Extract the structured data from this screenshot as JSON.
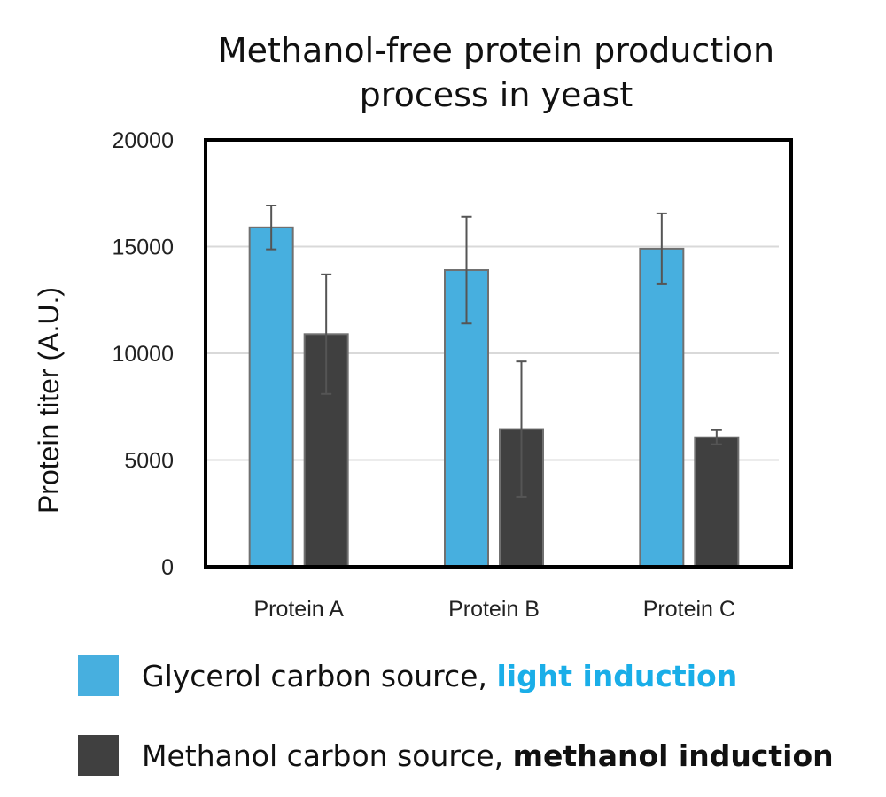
{
  "chart_data": {
    "type": "bar",
    "title_lines": [
      "Methanol-free protein production",
      "process in yeast"
    ],
    "xlabel": "",
    "ylabel": "Protein titer (A.U.)",
    "ylim": [
      0,
      20000
    ],
    "yticks": [
      0,
      5000,
      10000,
      15000,
      20000
    ],
    "grid": true,
    "legend_placement": "bottom",
    "categories": [
      "Protein A",
      "Protein B",
      "Protein C"
    ],
    "series": [
      {
        "name": "Glycerol carbon source, light induction",
        "legend_plain": "Glycerol carbon source, ",
        "legend_bold": "light induction",
        "color": "#47afdf",
        "legend_bold_color": "#1aaee8",
        "values": [
          15900,
          13900,
          14900
        ],
        "errors": [
          1030,
          2500,
          1660
        ]
      },
      {
        "name": "Methanol carbon source, methanol induction",
        "legend_plain": "Methanol carbon source, ",
        "legend_bold": "methanol induction",
        "color": "#404040",
        "legend_bold_color": "#111111",
        "values": [
          10900,
          6450,
          6070
        ],
        "errors": [
          2800,
          3170,
          330
        ]
      }
    ]
  }
}
